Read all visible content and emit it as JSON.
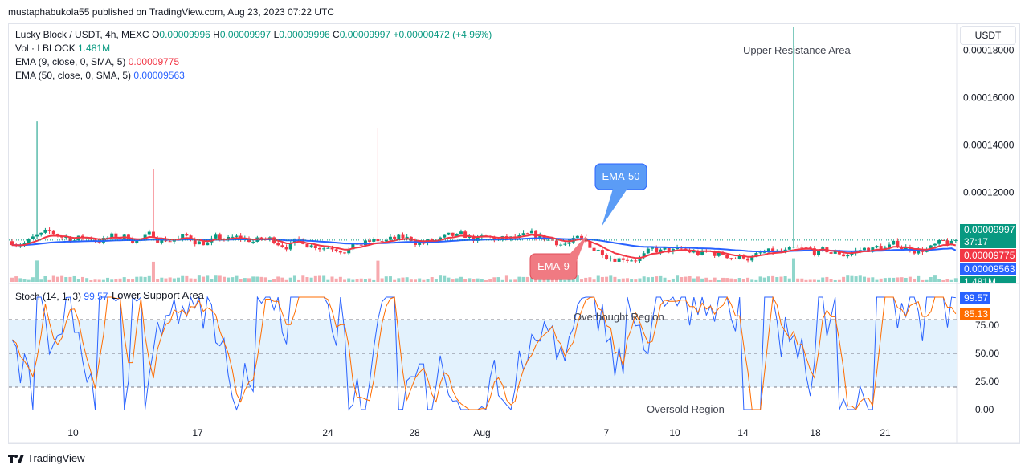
{
  "header": {
    "published": "mustaphabukola55 published on TradingView.com, Aug 23, 2023 07:22 UTC"
  },
  "legend": {
    "symbol": "Lucky Block / USDT, 4h, MEXC",
    "o_label": "O",
    "o_value": "0.00009996",
    "h_label": "H",
    "h_value": "0.00009997",
    "l_label": "L",
    "l_value": "0.00009996",
    "c_label": "C",
    "c_value": "0.00009997",
    "change": "+0.00000472 (+4.96%)",
    "vol_label": "Vol · LBLOCK",
    "vol_value": "1.481M",
    "ema9_label": "EMA (9, close, 0, SMA, 5)",
    "ema9_value": "0.00009775",
    "ema50_label": "EMA (50, close, 0, SMA, 5)",
    "ema50_value": "0.00009563",
    "stoch_label": "Stoch (14, 1, 3)",
    "stoch_k": "99.57",
    "stoch_d": "85.13"
  },
  "currency_button": "USDT",
  "price_tags": {
    "last_price": "0.00009997",
    "countdown": "37:17",
    "ema9": "0.00009775",
    "ema50": "0.00009563",
    "volume": "1.481M",
    "stoch_k": "99.57",
    "stoch_d": "85.13"
  },
  "annotations": {
    "upper_resistance": "Upper Resistance Area",
    "lower_support": "Lower Support Area",
    "overbought": "Overbought Region",
    "oversold": "Oversold Region",
    "ema50_callout": "EMA-50",
    "ema9_callout": "EMA-9"
  },
  "footer": {
    "brand": "TradingView"
  },
  "colors": {
    "up": "#089981",
    "down": "#f23645",
    "ema9": "#f23645",
    "ema50": "#2962ff",
    "stoch_k": "#2962ff",
    "stoch_d": "#ff6d00",
    "band": "#e3f2fd",
    "callout_blue": "#5b9cf6",
    "callout_red": "#f07a82"
  },
  "chart_data": {
    "type": "candlestick",
    "price_axis": {
      "ticks": [
        "0.00018000",
        "0.00016000",
        "0.00014000",
        "0.00012000"
      ],
      "tick_values": [
        0.00018,
        0.00016,
        0.00014,
        0.00012
      ],
      "ylim": [
        8.2e-05,
        0.000191
      ]
    },
    "x_axis": {
      "ticks": [
        "10",
        "17",
        "24",
        "28",
        "Aug",
        "7",
        "10",
        "14",
        "18",
        "21"
      ]
    },
    "last_price": 9.997e-05,
    "ema9_last": 9.775e-05,
    "ema50_last": 9.563e-05,
    "spikes": [
      {
        "near": "9",
        "high": 0.00015
      },
      {
        "near": "14",
        "high": 0.00013
      },
      {
        "near": "25",
        "high": 0.000147
      },
      {
        "near": "16",
        "high": 0.00019
      }
    ],
    "stochastic": {
      "k_last": 99.57,
      "d_last": 85.13,
      "levels": [
        80,
        50,
        20
      ],
      "ticks": [
        "75.00",
        "50.00",
        "25.00",
        "0.00"
      ],
      "tick_values": [
        75,
        50,
        25,
        0
      ],
      "ylim": [
        0,
        100
      ]
    }
  }
}
